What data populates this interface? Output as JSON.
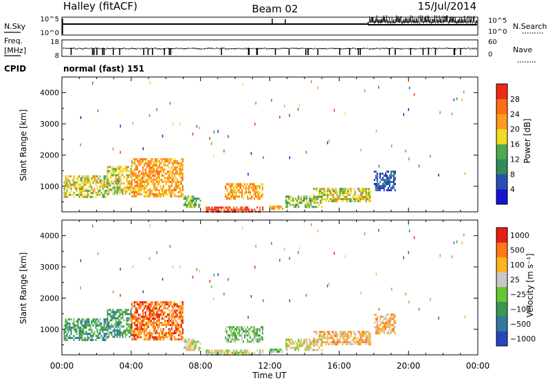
{
  "header": {
    "station": "Halley (fitACF)",
    "beam": "Beam 02",
    "date": "15/Jul/2014"
  },
  "strip1": {
    "left_label": "N.Sky",
    "right_label": "N.Search",
    "left_ticks": [
      "10^5",
      "10^0"
    ],
    "right_ticks": [
      "10^5",
      "10^0"
    ]
  },
  "strip2": {
    "left_label_1": "Freq.",
    "left_label_2": "[MHz]",
    "right_label": "Nave",
    "left_ticks": [
      "18",
      "8"
    ],
    "right_ticks": [
      "60",
      "0"
    ]
  },
  "cpid": {
    "label": "CPID",
    "value": "normal (fast) 151"
  },
  "chart_data": [
    {
      "type": "heatmap",
      "panel": "power",
      "ylabel": "Slant Range [km]",
      "colorbar_label": "Power [dB]",
      "colorbar_ticks": [
        "28",
        "24",
        "20",
        "16",
        "12",
        "8",
        "4"
      ],
      "colors": [
        "#1414d2",
        "#2850b4",
        "#2d8c5a",
        "#50aa50",
        "#f0dc1e",
        "#ff9b1e",
        "#ff6e14",
        "#f02814"
      ],
      "ylim": [
        180,
        4500
      ],
      "yticks": [
        "1000",
        "2000",
        "3000",
        "4000"
      ],
      "xlim": [
        0,
        24
      ],
      "xticks": [
        "00:00",
        "04:00",
        "08:00",
        "12:00",
        "16:00",
        "20:00",
        "00:00"
      ],
      "xlabel": "Time UT",
      "regions": [
        {
          "t0": 0.1,
          "t1": 2.6,
          "r0": 650,
          "r1": 1350,
          "level": 4
        },
        {
          "t0": 2.6,
          "t1": 4.0,
          "r0": 750,
          "r1": 1650,
          "level": 4
        },
        {
          "t0": 4.0,
          "t1": 7.0,
          "r0": 700,
          "r1": 1900,
          "level": 5
        },
        {
          "t0": 7.0,
          "t1": 8.0,
          "r0": 350,
          "r1": 700,
          "level": 3
        },
        {
          "t0": 8.3,
          "t1": 11.6,
          "r0": 200,
          "r1": 350,
          "level": 7
        },
        {
          "t0": 9.4,
          "t1": 11.6,
          "r0": 600,
          "r1": 1100,
          "level": 5
        },
        {
          "t0": 11.9,
          "t1": 12.8,
          "r0": 280,
          "r1": 380,
          "level": 5
        },
        {
          "t0": 12.9,
          "t1": 15.0,
          "r0": 320,
          "r1": 700,
          "level": 3
        },
        {
          "t0": 14.5,
          "t1": 17.8,
          "r0": 500,
          "r1": 950,
          "level": 4
        },
        {
          "t0": 18.0,
          "t1": 19.2,
          "r0": 900,
          "r1": 1500,
          "level": 1
        }
      ]
    },
    {
      "type": "heatmap",
      "panel": "velocity",
      "ylabel": "Slant Range [km]",
      "colorbar_label": "Velocity [m s⁻¹]",
      "colorbar_ticks": [
        "1000",
        "500",
        "100",
        "25",
        "−25",
        "−100",
        "−500",
        "−1000"
      ],
      "colors": [
        "#2846be",
        "#3278a0",
        "#3c9650",
        "#64c832",
        "#c8c8c8",
        "#ffb41e",
        "#ff7814",
        "#e61e14"
      ],
      "ylim": [
        180,
        4500
      ],
      "yticks": [
        "1000",
        "2000",
        "3000",
        "4000"
      ],
      "xlim": [
        0,
        24
      ],
      "xticks": [
        "00:00",
        "04:00",
        "08:00",
        "12:00",
        "16:00",
        "20:00",
        "00:00"
      ],
      "xlabel": "Time UT",
      "regions": [
        {
          "t0": 0.1,
          "t1": 2.6,
          "r0": 650,
          "r1": 1350,
          "level": 2
        },
        {
          "t0": 2.6,
          "t1": 4.0,
          "r0": 750,
          "r1": 1650,
          "level": 2
        },
        {
          "t0": 4.0,
          "t1": 7.0,
          "r0": 700,
          "r1": 1900,
          "level": 6
        },
        {
          "t0": 7.0,
          "t1": 8.0,
          "r0": 350,
          "r1": 700,
          "level": 4
        },
        {
          "t0": 8.3,
          "t1": 11.6,
          "r0": 200,
          "r1": 350,
          "level": 4
        },
        {
          "t0": 9.4,
          "t1": 11.6,
          "r0": 600,
          "r1": 1100,
          "level": 3
        },
        {
          "t0": 11.9,
          "t1": 12.8,
          "r0": 280,
          "r1": 380,
          "level": 3
        },
        {
          "t0": 12.9,
          "t1": 15.0,
          "r0": 320,
          "r1": 700,
          "level": 4
        },
        {
          "t0": 14.5,
          "t1": 17.8,
          "r0": 500,
          "r1": 950,
          "level": 5
        },
        {
          "t0": 18.0,
          "t1": 19.2,
          "r0": 900,
          "r1": 1500,
          "level": 5
        }
      ]
    }
  ]
}
